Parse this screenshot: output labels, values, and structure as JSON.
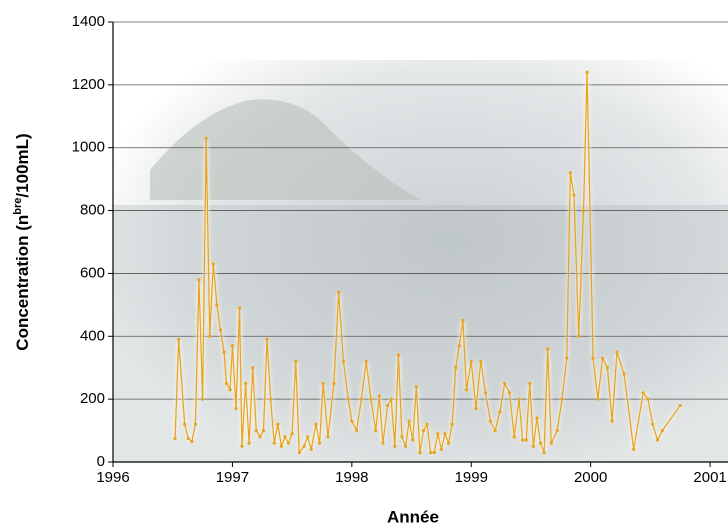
{
  "chart_data": {
    "type": "line",
    "xlabel": "Année",
    "ylabel": [
      "Concentration (n",
      "bre",
      "/100mL)"
    ],
    "x": [
      1996.52,
      1996.55,
      1996.6,
      1996.63,
      1996.66,
      1996.69,
      1996.72,
      1996.75,
      1996.78,
      1996.81,
      1996.84,
      1996.87,
      1996.9,
      1996.93,
      1996.95,
      1996.98,
      1997.0,
      1997.03,
      1997.06,
      1997.08,
      1997.11,
      1997.14,
      1997.17,
      1997.2,
      1997.23,
      1997.26,
      1997.29,
      1997.32,
      1997.35,
      1997.38,
      1997.41,
      1997.44,
      1997.47,
      1997.5,
      1997.53,
      1997.56,
      1997.6,
      1997.63,
      1997.66,
      1997.7,
      1997.73,
      1997.76,
      1997.8,
      1997.85,
      1997.89,
      1997.93,
      1997.97,
      1998.0,
      1998.04,
      1998.08,
      1998.12,
      1998.16,
      1998.2,
      1998.23,
      1998.26,
      1998.3,
      1998.33,
      1998.36,
      1998.39,
      1998.42,
      1998.45,
      1998.48,
      1998.51,
      1998.54,
      1998.57,
      1998.6,
      1998.63,
      1998.66,
      1998.69,
      1998.72,
      1998.75,
      1998.78,
      1998.81,
      1998.84,
      1998.87,
      1998.9,
      1998.93,
      1998.96,
      1999.0,
      1999.04,
      1999.08,
      1999.12,
      1999.16,
      1999.2,
      1999.24,
      1999.28,
      1999.32,
      1999.36,
      1999.4,
      1999.43,
      1999.46,
      1999.49,
      1999.52,
      1999.55,
      1999.58,
      1999.61,
      1999.64,
      1999.67,
      1999.72,
      1999.76,
      1999.8,
      1999.83,
      1999.86,
      1999.9,
      1999.94,
      1999.97,
      2000.02,
      2000.06,
      2000.1,
      2000.14,
      2000.18,
      2000.22,
      2000.28,
      2000.36,
      2000.44,
      2000.48,
      2000.52,
      2000.56,
      2000.6,
      2000.75
    ],
    "series": [
      {
        "color": "#e8a41c",
        "values": [
          75,
          390,
          120,
          75,
          65,
          120,
          580,
          200,
          1030,
          400,
          630,
          500,
          420,
          350,
          250,
          230,
          370,
          170,
          490,
          50,
          250,
          60,
          300,
          100,
          80,
          100,
          390,
          200,
          60,
          120,
          50,
          80,
          60,
          90,
          320,
          30,
          50,
          80,
          40,
          120,
          60,
          250,
          80,
          250,
          540,
          320,
          200,
          130,
          100,
          200,
          320,
          200,
          100,
          210,
          60,
          180,
          200,
          50,
          340,
          80,
          50,
          130,
          70,
          240,
          30,
          100,
          120,
          30,
          30,
          90,
          40,
          90,
          60,
          120,
          300,
          370,
          450,
          230,
          320,
          170,
          320,
          220,
          130,
          100,
          160,
          250,
          220,
          80,
          200,
          70,
          70,
          250,
          50,
          140,
          60,
          30,
          360,
          60,
          100,
          200,
          330,
          920,
          850,
          400,
          800,
          1240,
          330,
          200,
          330,
          300,
          130,
          350,
          280,
          40,
          220,
          200,
          120,
          70,
          100,
          180
        ]
      }
    ],
    "xlim": [
      1996,
      2001.15
    ],
    "xticks": [
      1996,
      1997,
      1998,
      1999,
      2000,
      2001
    ],
    "ylim": [
      0,
      1400
    ],
    "yticks": [
      0,
      200,
      400,
      600,
      800,
      1000,
      1200,
      1400
    ],
    "grid": true
  }
}
